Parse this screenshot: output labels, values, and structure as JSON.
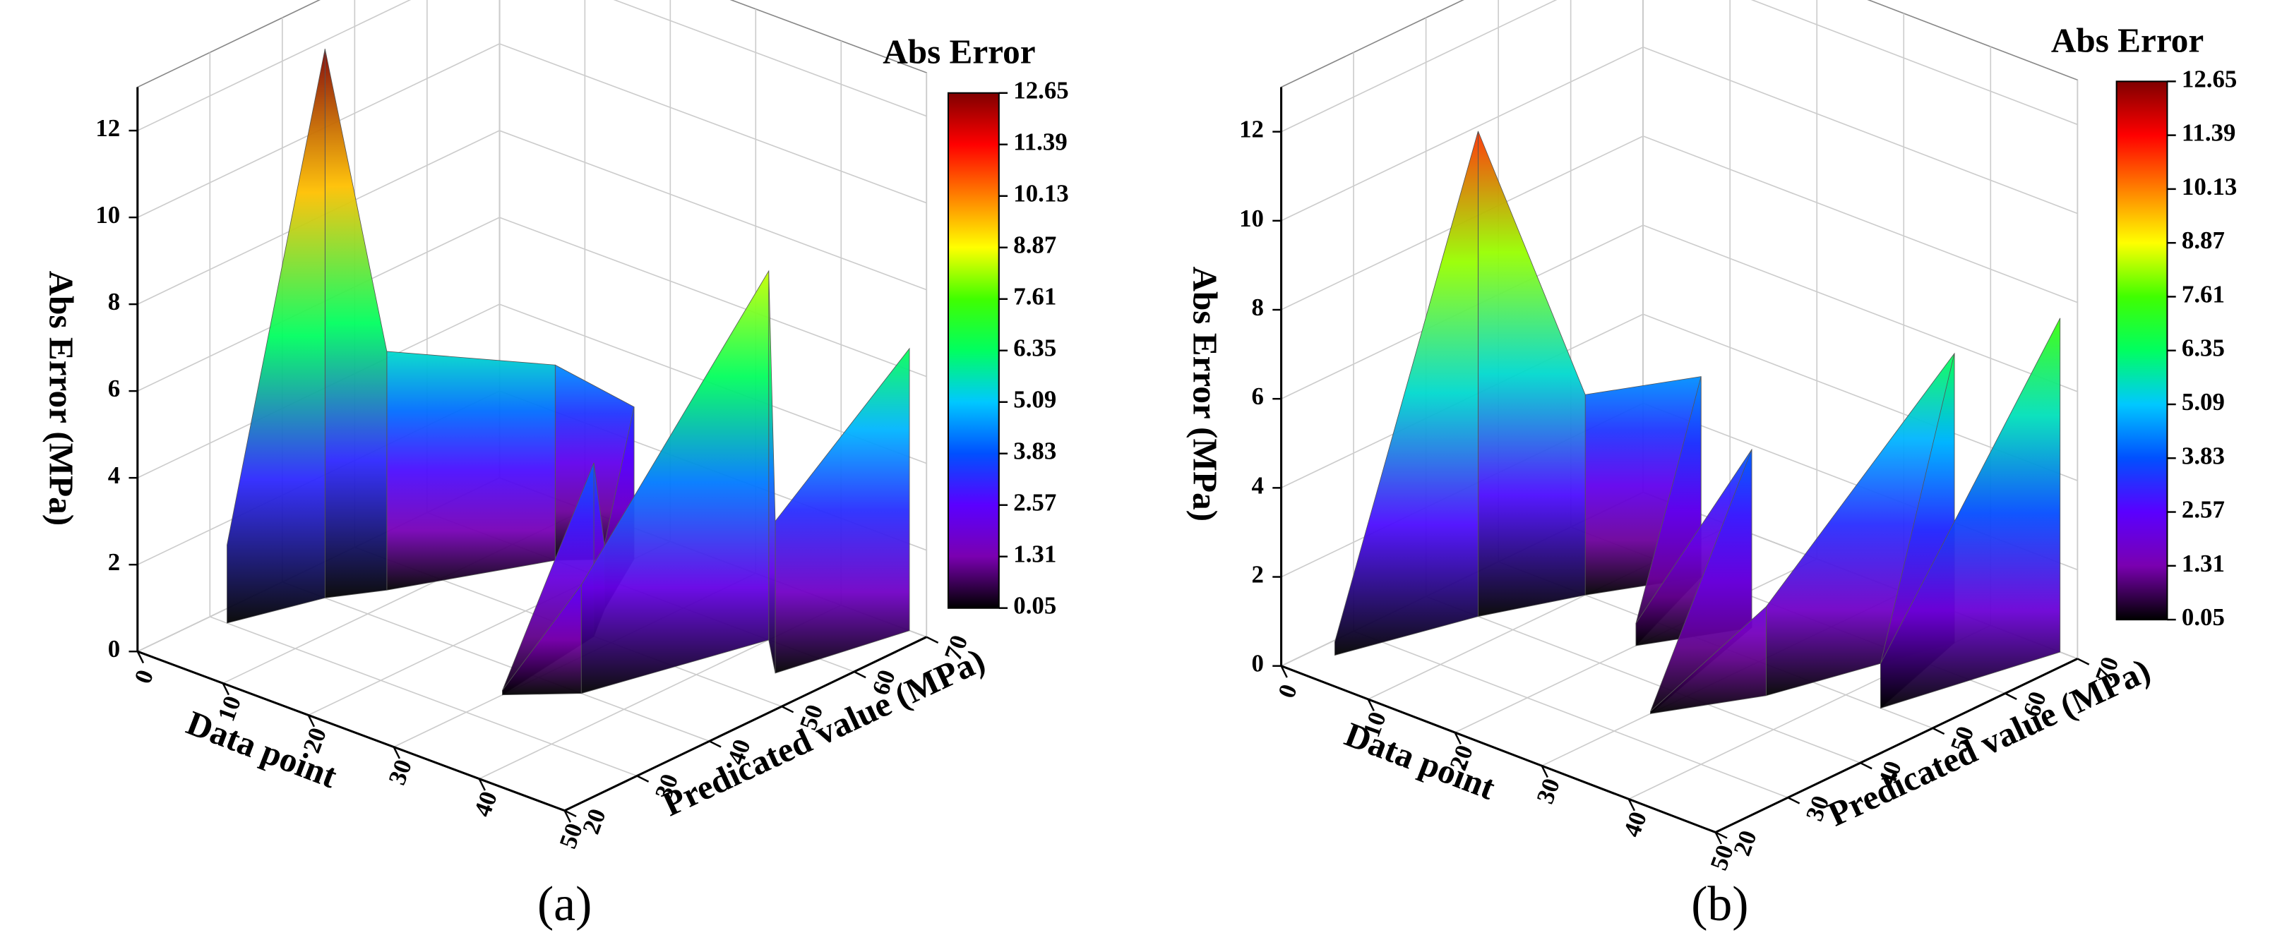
{
  "chart_data": [
    {
      "type": "surface3d",
      "panel": "(a)",
      "zlabel": "Abs Error (MPa)",
      "xlabel": "Data point",
      "ylabel": "Predicated value (MPa)",
      "x": [
        2,
        5,
        8,
        15,
        20,
        25,
        28,
        30,
        35,
        40,
        45,
        48
      ],
      "y": [
        30,
        40,
        45,
        60,
        65,
        55,
        50,
        35,
        40,
        60,
        55,
        70
      ],
      "z": [
        1.8,
        12.65,
        5.5,
        4.5,
        3.5,
        1.5,
        4,
        0.1,
        2.5,
        8.5,
        3.5,
        6.5
      ],
      "xlim": [
        0,
        50
      ],
      "xticks": [
        0,
        10,
        20,
        30,
        40,
        50
      ],
      "ylim": [
        20,
        70
      ],
      "yticks": [
        20,
        30,
        40,
        50,
        60,
        70
      ],
      "zlim": [
        0,
        13
      ],
      "zticks": [
        0,
        2,
        4,
        6,
        8,
        10,
        12
      ],
      "grid": true,
      "colorbar": {
        "title": "Abs Error",
        "lim": [
          0.05,
          12.65
        ],
        "ticks": [
          0.05,
          1.31,
          2.57,
          3.83,
          5.09,
          6.35,
          7.61,
          8.87,
          10.13,
          11.39,
          12.65
        ],
        "colors": [
          "#000000",
          "#7a00b0",
          "#5a00ff",
          "#0050ff",
          "#00c8ff",
          "#00ff60",
          "#40ff00",
          "#ffff00",
          "#ff8000",
          "#ff0000",
          "#800000"
        ]
      }
    },
    {
      "type": "surface3d",
      "panel": "(b)",
      "zlabel": "Abs Error (MPa)",
      "xlabel": "Data point",
      "ylabel": "Predicated value (MPa)",
      "x": [
        2,
        6,
        10,
        15,
        20,
        25,
        30,
        35,
        40,
        44,
        48
      ],
      "y": [
        25,
        40,
        50,
        60,
        45,
        55,
        35,
        45,
        65,
        50,
        70
      ],
      "z": [
        0.3,
        10.9,
        4.5,
        4.5,
        0.5,
        4,
        0.05,
        2,
        6.5,
        1,
        7.5
      ],
      "xlim": [
        0,
        50
      ],
      "xticks": [
        0,
        10,
        20,
        30,
        40,
        50
      ],
      "ylim": [
        20,
        70
      ],
      "yticks": [
        20,
        30,
        40,
        50,
        60,
        70
      ],
      "zlim": [
        0,
        13
      ],
      "zticks": [
        0,
        2,
        4,
        6,
        8,
        10,
        12
      ],
      "grid": true,
      "colorbar": {
        "title": "Abs Error",
        "lim": [
          0.05,
          12.65
        ],
        "ticks": [
          0.05,
          1.31,
          2.57,
          3.83,
          5.09,
          6.35,
          7.61,
          8.87,
          10.13,
          11.39,
          12.65
        ],
        "colors": [
          "#000000",
          "#7a00b0",
          "#5a00ff",
          "#0050ff",
          "#00c8ff",
          "#00ff60",
          "#40ff00",
          "#ffff00",
          "#ff8000",
          "#ff0000",
          "#800000"
        ]
      }
    }
  ]
}
